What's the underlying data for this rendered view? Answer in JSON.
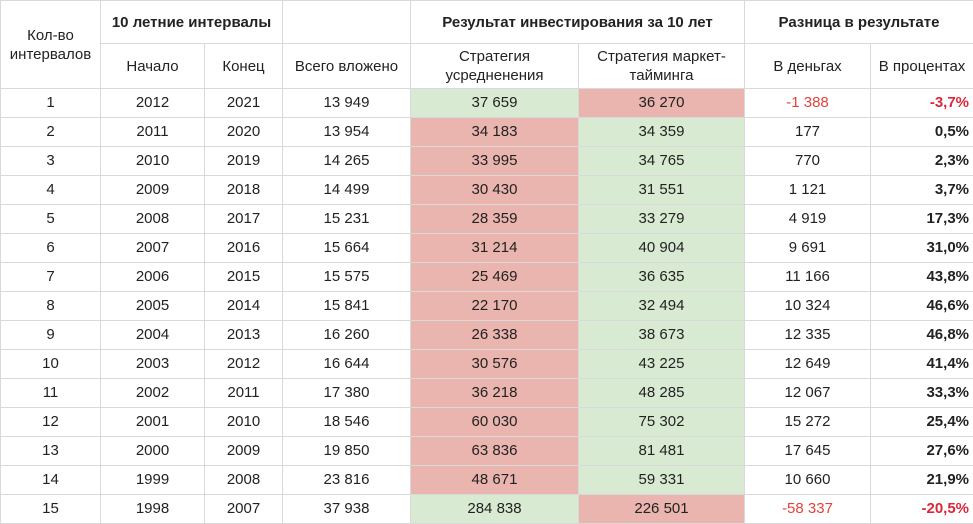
{
  "header": {
    "count_label": "Кол-во интервалов",
    "intervals_label": "10 летние интервалы",
    "start_label": "Начало",
    "end_label": "Конец",
    "total_label": "Всего вложено",
    "result_label": "Результат инвестирования за 10 лет",
    "dca_label": "Стратегия усредненения",
    "timing_label": "Стратегия маркет-тайминга",
    "diff_label": "Разница в результате",
    "diff_money_label": "В деньгах",
    "diff_pct_label": "В процентах"
  },
  "colors": {
    "green_cell": "#d9ead3",
    "red_cell": "#eab5ae",
    "negative_text": "#e0453a"
  },
  "rows": [
    {
      "n": "1",
      "start": "2012",
      "end": "2021",
      "total": "13 949",
      "dca": "37 659",
      "timing": "36 270",
      "diff": "-1 388",
      "pct": "-3,7%",
      "dca_color": "green",
      "timing_color": "red",
      "negative": true
    },
    {
      "n": "2",
      "start": "2011",
      "end": "2020",
      "total": "13 954",
      "dca": "34 183",
      "timing": "34 359",
      "diff": "177",
      "pct": "0,5%",
      "dca_color": "red",
      "timing_color": "green",
      "negative": false
    },
    {
      "n": "3",
      "start": "2010",
      "end": "2019",
      "total": "14 265",
      "dca": "33 995",
      "timing": "34 765",
      "diff": "770",
      "pct": "2,3%",
      "dca_color": "red",
      "timing_color": "green",
      "negative": false
    },
    {
      "n": "4",
      "start": "2009",
      "end": "2018",
      "total": "14 499",
      "dca": "30 430",
      "timing": "31 551",
      "diff": "1 121",
      "pct": "3,7%",
      "dca_color": "red",
      "timing_color": "green",
      "negative": false
    },
    {
      "n": "5",
      "start": "2008",
      "end": "2017",
      "total": "15 231",
      "dca": "28 359",
      "timing": "33 279",
      "diff": "4 919",
      "pct": "17,3%",
      "dca_color": "red",
      "timing_color": "green",
      "negative": false
    },
    {
      "n": "6",
      "start": "2007",
      "end": "2016",
      "total": "15 664",
      "dca": "31 214",
      "timing": "40 904",
      "diff": "9 691",
      "pct": "31,0%",
      "dca_color": "red",
      "timing_color": "green",
      "negative": false
    },
    {
      "n": "7",
      "start": "2006",
      "end": "2015",
      "total": "15 575",
      "dca": "25 469",
      "timing": "36 635",
      "diff": "11 166",
      "pct": "43,8%",
      "dca_color": "red",
      "timing_color": "green",
      "negative": false
    },
    {
      "n": "8",
      "start": "2005",
      "end": "2014",
      "total": "15 841",
      "dca": "22 170",
      "timing": "32 494",
      "diff": "10 324",
      "pct": "46,6%",
      "dca_color": "red",
      "timing_color": "green",
      "negative": false
    },
    {
      "n": "9",
      "start": "2004",
      "end": "2013",
      "total": "16 260",
      "dca": "26 338",
      "timing": "38 673",
      "diff": "12 335",
      "pct": "46,8%",
      "dca_color": "red",
      "timing_color": "green",
      "negative": false
    },
    {
      "n": "10",
      "start": "2003",
      "end": "2012",
      "total": "16 644",
      "dca": "30 576",
      "timing": "43 225",
      "diff": "12 649",
      "pct": "41,4%",
      "dca_color": "red",
      "timing_color": "green",
      "negative": false
    },
    {
      "n": "11",
      "start": "2002",
      "end": "2011",
      "total": "17 380",
      "dca": "36 218",
      "timing": "48 285",
      "diff": "12 067",
      "pct": "33,3%",
      "dca_color": "red",
      "timing_color": "green",
      "negative": false
    },
    {
      "n": "12",
      "start": "2001",
      "end": "2010",
      "total": "18 546",
      "dca": "60 030",
      "timing": "75 302",
      "diff": "15 272",
      "pct": "25,4%",
      "dca_color": "red",
      "timing_color": "green",
      "negative": false
    },
    {
      "n": "13",
      "start": "2000",
      "end": "2009",
      "total": "19 850",
      "dca": "63 836",
      "timing": "81 481",
      "diff": "17 645",
      "pct": "27,6%",
      "dca_color": "red",
      "timing_color": "green",
      "negative": false
    },
    {
      "n": "14",
      "start": "1999",
      "end": "2008",
      "total": "23 816",
      "dca": "48 671",
      "timing": "59 331",
      "diff": "10 660",
      "pct": "21,9%",
      "dca_color": "red",
      "timing_color": "green",
      "negative": false
    },
    {
      "n": "15",
      "start": "1998",
      "end": "2007",
      "total": "37 938",
      "dca": "284 838",
      "timing": "226 501",
      "diff": "-58 337",
      "pct": "-20,5%",
      "dca_color": "green",
      "timing_color": "red",
      "negative": true
    }
  ]
}
